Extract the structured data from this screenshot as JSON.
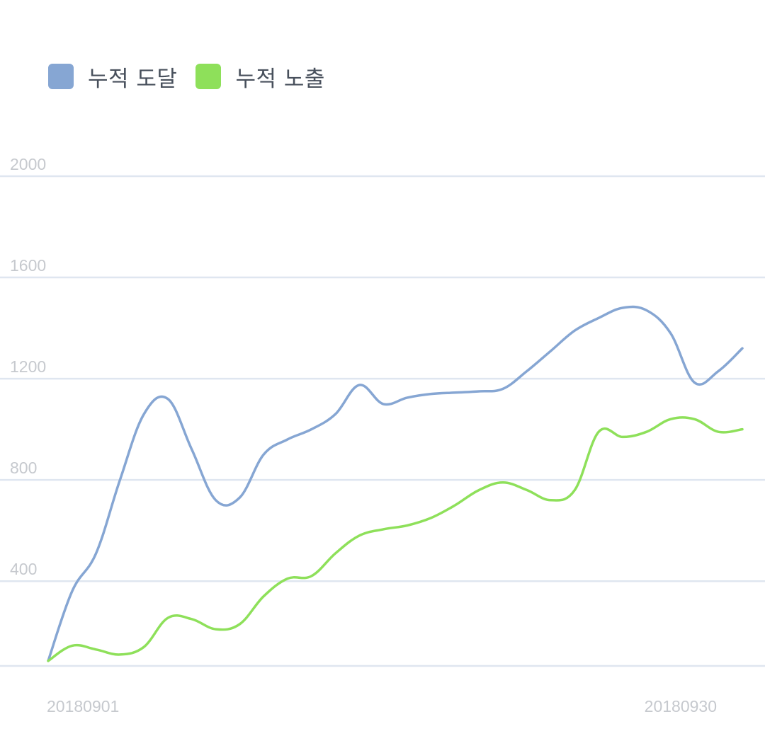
{
  "legend": [
    {
      "label": "누적 도달",
      "color": "#86a6d3"
    },
    {
      "label": "누적 노출",
      "color": "#8ee05a"
    }
  ],
  "chart_data": {
    "type": "line",
    "title": "",
    "xlabel": "",
    "ylabel": "",
    "x_tick_labels": [
      "20180901",
      "20180930"
    ],
    "y_ticks": [
      400,
      800,
      1200,
      1600,
      2000
    ],
    "ylim": [
      65,
      2000
    ],
    "grid": true,
    "legend_position": "top-left",
    "x": [
      "20180901",
      "20180902",
      "20180903",
      "20180904",
      "20180905",
      "20180906",
      "20180907",
      "20180908",
      "20180909",
      "20180910",
      "20180911",
      "20180912",
      "20180913",
      "20180914",
      "20180915",
      "20180916",
      "20180917",
      "20180918",
      "20180919",
      "20180920",
      "20180921",
      "20180922",
      "20180923",
      "20180924",
      "20180925",
      "20180926",
      "20180927",
      "20180928",
      "20180929",
      "20180930"
    ],
    "series": [
      {
        "name": "누적 도달",
        "color": "#86a6d3",
        "values": [
          85,
          360,
          510,
          800,
          1060,
          1120,
          920,
          720,
          730,
          900,
          960,
          1000,
          1060,
          1175,
          1100,
          1125,
          1140,
          1145,
          1150,
          1160,
          1230,
          1310,
          1390,
          1440,
          1480,
          1470,
          1380,
          1185,
          1230,
          1320
        ]
      },
      {
        "name": "누적 노출",
        "color": "#8ee05a",
        "values": [
          85,
          145,
          130,
          110,
          140,
          255,
          250,
          210,
          230,
          340,
          410,
          420,
          510,
          580,
          605,
          620,
          650,
          700,
          760,
          790,
          760,
          720,
          760,
          990,
          970,
          990,
          1040,
          1040,
          990,
          1000
        ]
      }
    ]
  }
}
